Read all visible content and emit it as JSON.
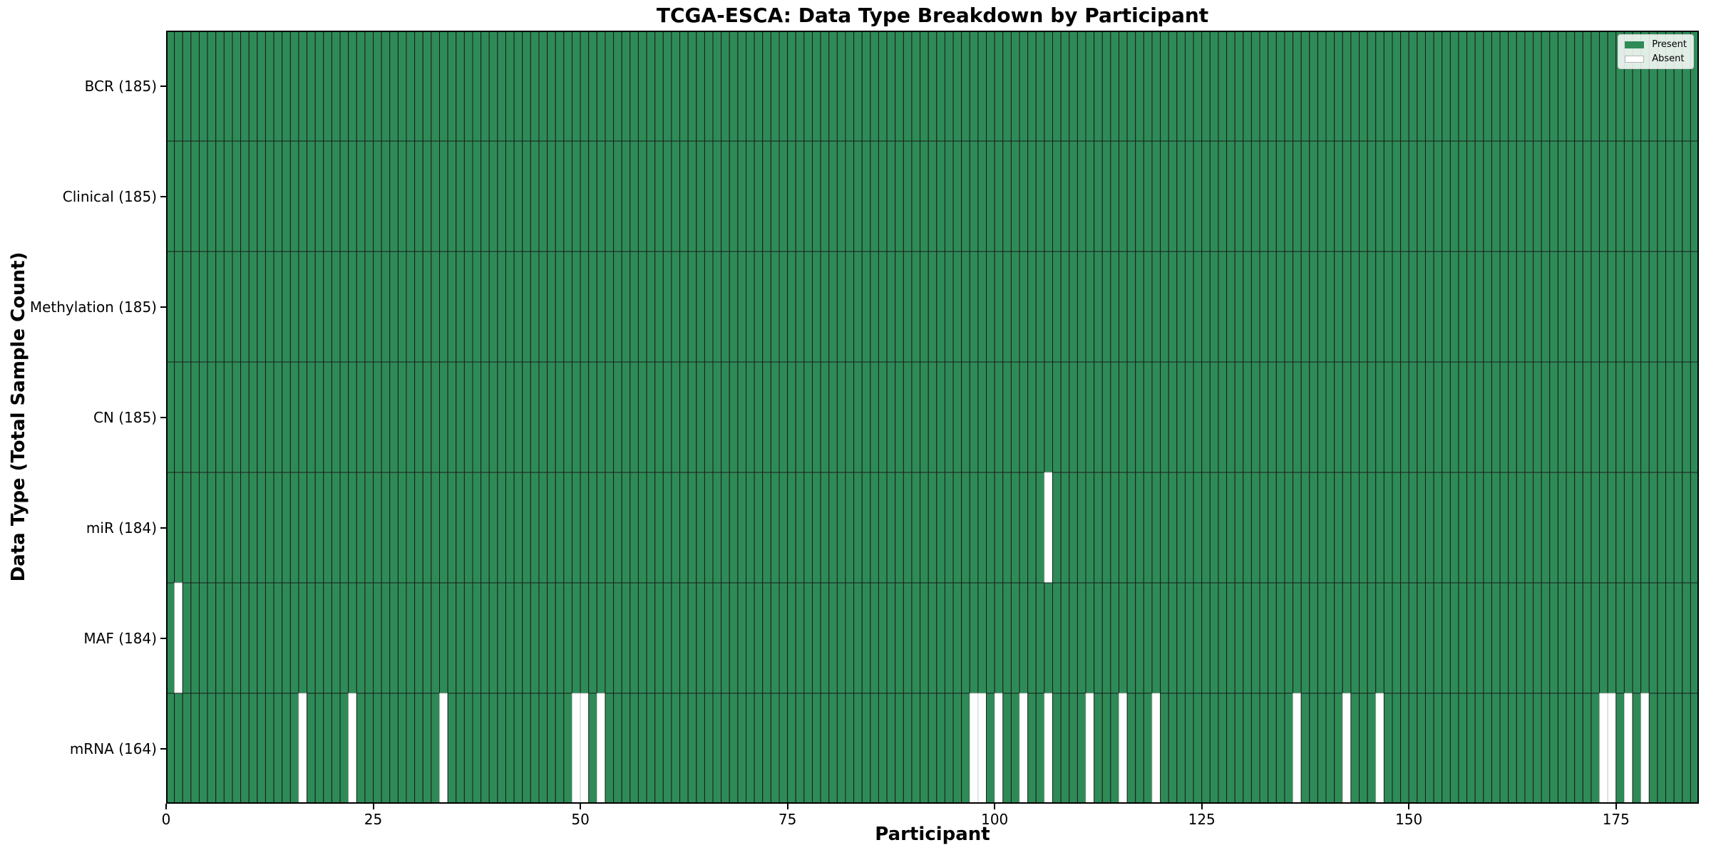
{
  "chart_data": {
    "type": "heatmap",
    "title": "TCGA-ESCA: Data Type Breakdown by Participant",
    "xlabel": "Participant",
    "ylabel": "Data Type (Total Sample Count)",
    "n_participants": 185,
    "x_range": [
      0,
      185
    ],
    "x_ticks": [
      0,
      25,
      50,
      75,
      100,
      125,
      150,
      175
    ],
    "grid": false,
    "legend_position": "upper right",
    "rows": [
      {
        "label": "BCR (185)",
        "data_type": "BCR",
        "present_count": 185,
        "absent_participants": []
      },
      {
        "label": "Clinical (185)",
        "data_type": "Clinical",
        "present_count": 185,
        "absent_participants": []
      },
      {
        "label": "Methylation (185)",
        "data_type": "Methylation",
        "present_count": 185,
        "absent_participants": []
      },
      {
        "label": "CN (185)",
        "data_type": "CN",
        "present_count": 185,
        "absent_participants": []
      },
      {
        "label": "miR (184)",
        "data_type": "miR",
        "present_count": 184,
        "absent_participants": [
          106
        ]
      },
      {
        "label": "MAF (184)",
        "data_type": "MAF",
        "present_count": 184,
        "absent_participants": [
          1
        ]
      },
      {
        "label": "mRNA (164)",
        "data_type": "mRNA",
        "present_count": 164,
        "absent_participants": [
          16,
          22,
          33,
          49,
          50,
          52,
          97,
          98,
          100,
          103,
          106,
          111,
          115,
          119,
          136,
          142,
          146,
          173,
          174,
          176,
          178
        ]
      }
    ],
    "legend": [
      {
        "label": "Present",
        "color": "#2e8b57"
      },
      {
        "label": "Absent",
        "color": "#ffffff"
      }
    ],
    "colors": {
      "present_fill": "#2e8b57",
      "absent_fill": "#ffffff",
      "present_edge": "#1b1b1b",
      "absent_edge": "#bdbdbd",
      "frame": "#000000",
      "background": "#ffffff"
    }
  }
}
